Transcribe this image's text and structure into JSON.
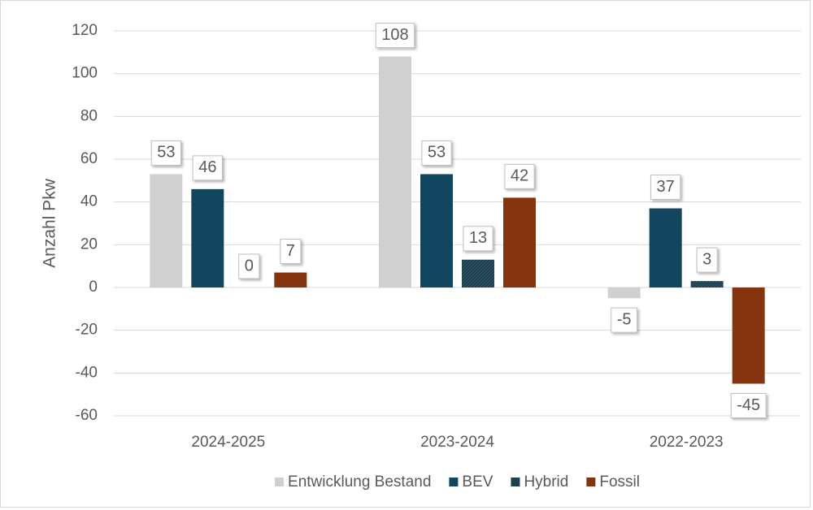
{
  "chart_data": {
    "type": "bar",
    "y_label": "Anzahl Pkw",
    "categories": [
      "2024-2025",
      "2023-2024",
      "2022-2023"
    ],
    "series": [
      {
        "name": "Entwicklung Bestand",
        "color": "#d0d0d0",
        "values": [
          53,
          108,
          -5
        ]
      },
      {
        "name": "BEV",
        "color": "#12455e",
        "values": [
          46,
          53,
          37
        ]
      },
      {
        "name": "Hybrid",
        "color": "#1f3f4e",
        "values": [
          0,
          13,
          3
        ]
      },
      {
        "name": "Fossil",
        "color": "#843510",
        "values": [
          7,
          42,
          -45
        ]
      }
    ],
    "ylim": [
      -60,
      120
    ],
    "yticks": [
      -60,
      -40,
      -20,
      0,
      20,
      40,
      60,
      80,
      100,
      120
    ],
    "grid": true,
    "legend": "bottom"
  }
}
